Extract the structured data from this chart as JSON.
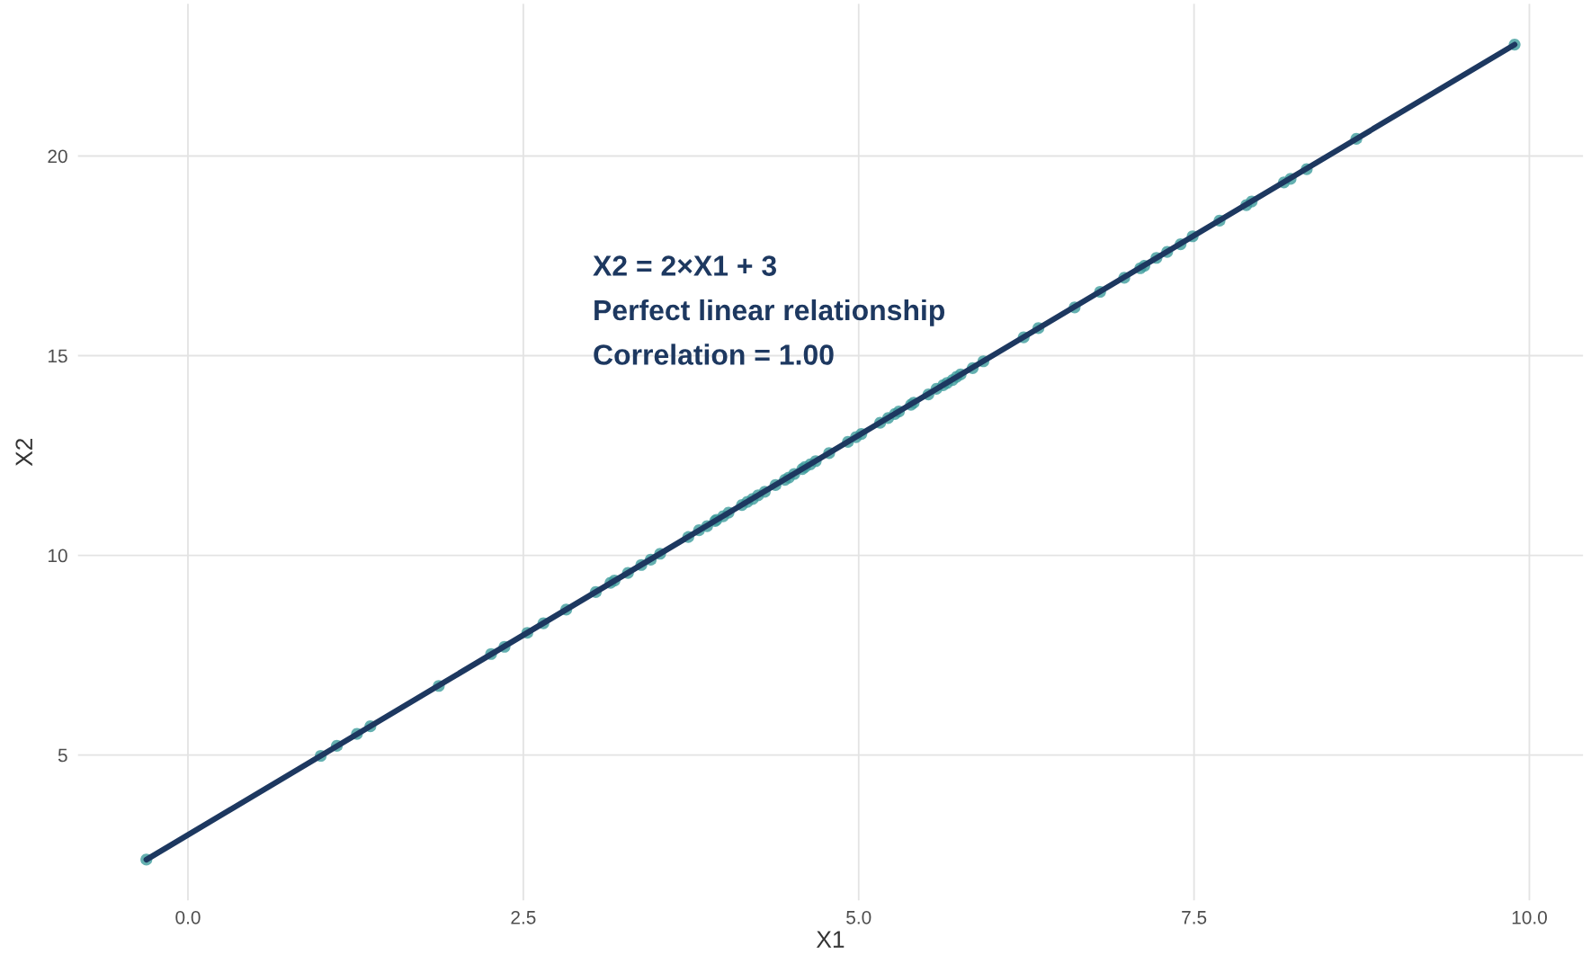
{
  "chart_data": {
    "type": "scatter",
    "xlabel": "X1",
    "ylabel": "X2",
    "xlim": [
      -0.82,
      10.4
    ],
    "ylim": [
      1.36,
      23.81
    ],
    "xticks": [
      {
        "value": 0,
        "label": "0.0"
      },
      {
        "value": 2.5,
        "label": "2.5"
      },
      {
        "value": 5,
        "label": "5.0"
      },
      {
        "value": 7.5,
        "label": "7.5"
      },
      {
        "value": 10,
        "label": "10.0"
      }
    ],
    "yticks": [
      5,
      10,
      15,
      20
    ],
    "grid": true,
    "annotations": [
      "X2 = 2×X1 + 3\nPerfect linear relationship\nCorrelation = 1.00"
    ],
    "series": [
      {
        "marker": "circle",
        "color": "#3d9c9c",
        "x": [
          -0.31,
          0.99,
          1.11,
          1.26,
          1.36,
          1.87,
          2.26,
          2.36,
          2.53,
          2.65,
          2.82,
          3.04,
          3.15,
          3.18,
          3.28,
          3.38,
          3.45,
          3.52,
          3.73,
          3.81,
          3.87,
          3.93,
          3.94,
          3.99,
          4.03,
          4.13,
          4.17,
          4.21,
          4.25,
          4.3,
          4.38,
          4.45,
          4.48,
          4.52,
          4.58,
          4.6,
          4.64,
          4.68,
          4.78,
          4.92,
          4.98,
          5.02,
          5.16,
          5.22,
          5.27,
          5.3,
          5.39,
          5.41,
          5.52,
          5.58,
          5.63,
          5.66,
          5.7,
          5.73,
          5.76,
          5.85,
          5.93,
          6.23,
          6.34,
          6.61,
          6.8,
          6.98,
          7.1,
          7.13,
          7.22,
          7.3,
          7.4,
          7.49,
          7.69,
          7.89,
          7.93,
          8.17,
          8.22,
          8.34,
          8.71,
          9.89
        ],
        "values": [
          2.38,
          4.98,
          5.23,
          5.53,
          5.72,
          6.73,
          7.53,
          7.71,
          8.06,
          8.3,
          8.64,
          9.08,
          9.31,
          9.37,
          9.56,
          9.76,
          9.89,
          10.04,
          10.46,
          10.63,
          10.73,
          10.86,
          10.89,
          10.98,
          11.07,
          11.26,
          11.34,
          11.41,
          11.5,
          11.59,
          11.76,
          11.89,
          11.95,
          12.04,
          12.16,
          12.21,
          12.28,
          12.36,
          12.56,
          12.84,
          12.96,
          13.04,
          13.32,
          13.44,
          13.54,
          13.6,
          13.77,
          13.82,
          14.03,
          14.17,
          14.26,
          14.32,
          14.39,
          14.47,
          14.53,
          14.69,
          14.86,
          15.46,
          15.69,
          16.21,
          16.6,
          16.95,
          17.19,
          17.25,
          17.45,
          17.6,
          17.79,
          17.99,
          18.38,
          18.77,
          18.86,
          19.34,
          19.43,
          19.67,
          20.43,
          22.79
        ]
      },
      {
        "type": "line",
        "color": "#1d3860",
        "line_style": "solid",
        "x": [
          -0.31,
          9.89
        ],
        "values": [
          2.38,
          22.79
        ]
      }
    ]
  }
}
